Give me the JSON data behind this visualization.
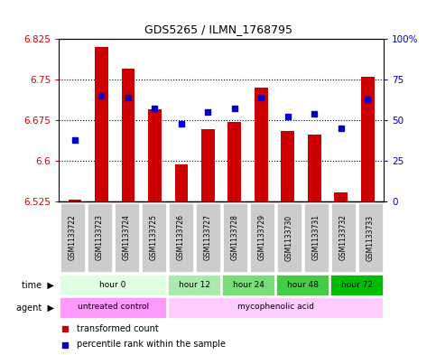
{
  "title": "GDS5265 / ILMN_1768795",
  "samples": [
    "GSM1133722",
    "GSM1133723",
    "GSM1133724",
    "GSM1133725",
    "GSM1133726",
    "GSM1133727",
    "GSM1133728",
    "GSM1133729",
    "GSM1133730",
    "GSM1133731",
    "GSM1133732",
    "GSM1133733"
  ],
  "bar_values": [
    6.528,
    6.81,
    6.77,
    6.695,
    6.594,
    6.658,
    6.672,
    6.735,
    6.655,
    6.648,
    6.542,
    6.755
  ],
  "percentile_values": [
    38,
    65,
    64,
    57,
    48,
    55,
    57,
    64,
    52,
    54,
    45,
    63
  ],
  "ylim_left": [
    6.525,
    6.825
  ],
  "ylim_right": [
    0,
    100
  ],
  "yticks_left": [
    6.525,
    6.6,
    6.675,
    6.75,
    6.825
  ],
  "yticks_right": [
    0,
    25,
    50,
    75,
    100
  ],
  "ytick_labels_left": [
    "6.525",
    "6.6",
    "6.675",
    "6.75",
    "6.825"
  ],
  "ytick_labels_right": [
    "0",
    "25",
    "50",
    "75",
    "100%"
  ],
  "bar_color": "#cc0000",
  "bar_bottom": 6.525,
  "dot_color": "#0000cc",
  "grid_color": "#000000",
  "time_groups": [
    {
      "label": "hour 0",
      "start": 0,
      "end": 4,
      "color": "#e0ffe0"
    },
    {
      "label": "hour 12",
      "start": 4,
      "end": 6,
      "color": "#aaeaaa"
    },
    {
      "label": "hour 24",
      "start": 6,
      "end": 8,
      "color": "#77dd77"
    },
    {
      "label": "hour 48",
      "start": 8,
      "end": 10,
      "color": "#44cc44"
    },
    {
      "label": "hour 72",
      "start": 10,
      "end": 12,
      "color": "#00bb00"
    }
  ],
  "agent_groups": [
    {
      "label": "untreated control",
      "start": 0,
      "end": 4,
      "color": "#ff99ff"
    },
    {
      "label": "mycophenolic acid",
      "start": 4,
      "end": 12,
      "color": "#ffccff"
    }
  ],
  "tick_label_left_color": "#cc0000",
  "tick_label_right_color": "#0000bb",
  "bar_width": 0.5
}
